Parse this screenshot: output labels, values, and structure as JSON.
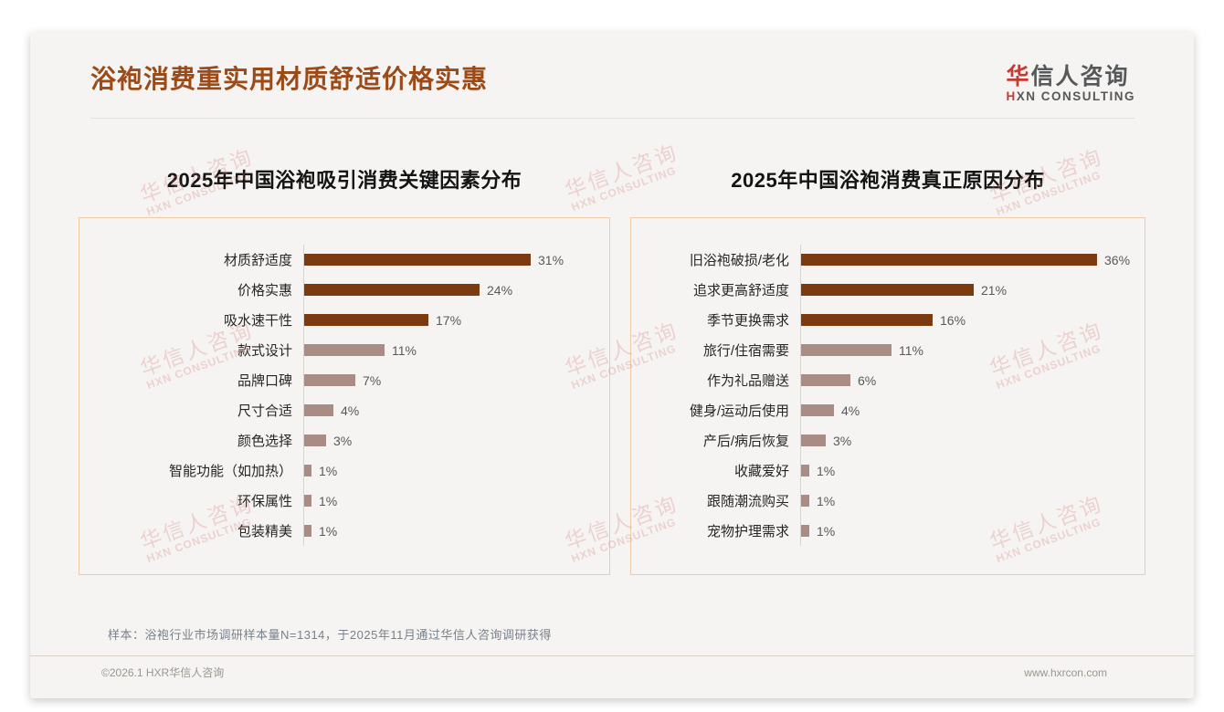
{
  "page": {
    "title": "浴袍消费重实用材质舒适价格实惠",
    "logo": {
      "zh_red": "华",
      "zh_gray": "信人咨询",
      "en_red": "H",
      "en_gray": "XN CONSULTING"
    },
    "watermark": {
      "line1": "华信人咨询",
      "line2": "HXN CONSULTING"
    },
    "sample_note": "样本：浴袍行业市场调研样本量N=1314，于2025年11月通过华信人咨询调研获得",
    "footer_left": "©2026.1 HXR华信人咨询",
    "footer_right": "www.hxrcon.com"
  },
  "colors": {
    "title_brown": "#9c4a17",
    "logo_red": "#c73a31",
    "bar_dark": "#7b3a10",
    "bar_light": "#a98d85",
    "panel_border": "#eccba6",
    "watermark_pink": "#d8827a"
  },
  "chart_data": [
    {
      "type": "bar",
      "orientation": "horizontal",
      "title": "2025年中国浴袍吸引消费关键因素分布",
      "categories": [
        "材质舒适度",
        "价格实惠",
        "吸水速干性",
        "款式设计",
        "品牌口碑",
        "尺寸合适",
        "颜色选择",
        "智能功能（如加热）",
        "环保属性",
        "包装精美"
      ],
      "values": [
        31,
        24,
        17,
        11,
        7,
        4,
        3,
        1,
        1,
        1
      ],
      "value_labels": [
        "31%",
        "24%",
        "17%",
        "11%",
        "7%",
        "4%",
        "3%",
        "1%",
        "1%",
        "1%"
      ],
      "unit": "%",
      "highlight_count": 3,
      "legend": "none",
      "grid": "off"
    },
    {
      "type": "bar",
      "orientation": "horizontal",
      "title": "2025年中国浴袍消费真正原因分布",
      "categories": [
        "旧浴袍破损/老化",
        "追求更高舒适度",
        "季节更换需求",
        "旅行/住宿需要",
        "作为礼品赠送",
        "健身/运动后使用",
        "产后/病后恢复",
        "收藏爱好",
        "跟随潮流购买",
        "宠物护理需求"
      ],
      "values": [
        36,
        21,
        16,
        11,
        6,
        4,
        3,
        1,
        1,
        1
      ],
      "value_labels": [
        "36%",
        "21%",
        "16%",
        "11%",
        "6%",
        "4%",
        "3%",
        "1%",
        "1%",
        "1%"
      ],
      "unit": "%",
      "highlight_count": 3,
      "legend": "none",
      "grid": "off"
    }
  ]
}
